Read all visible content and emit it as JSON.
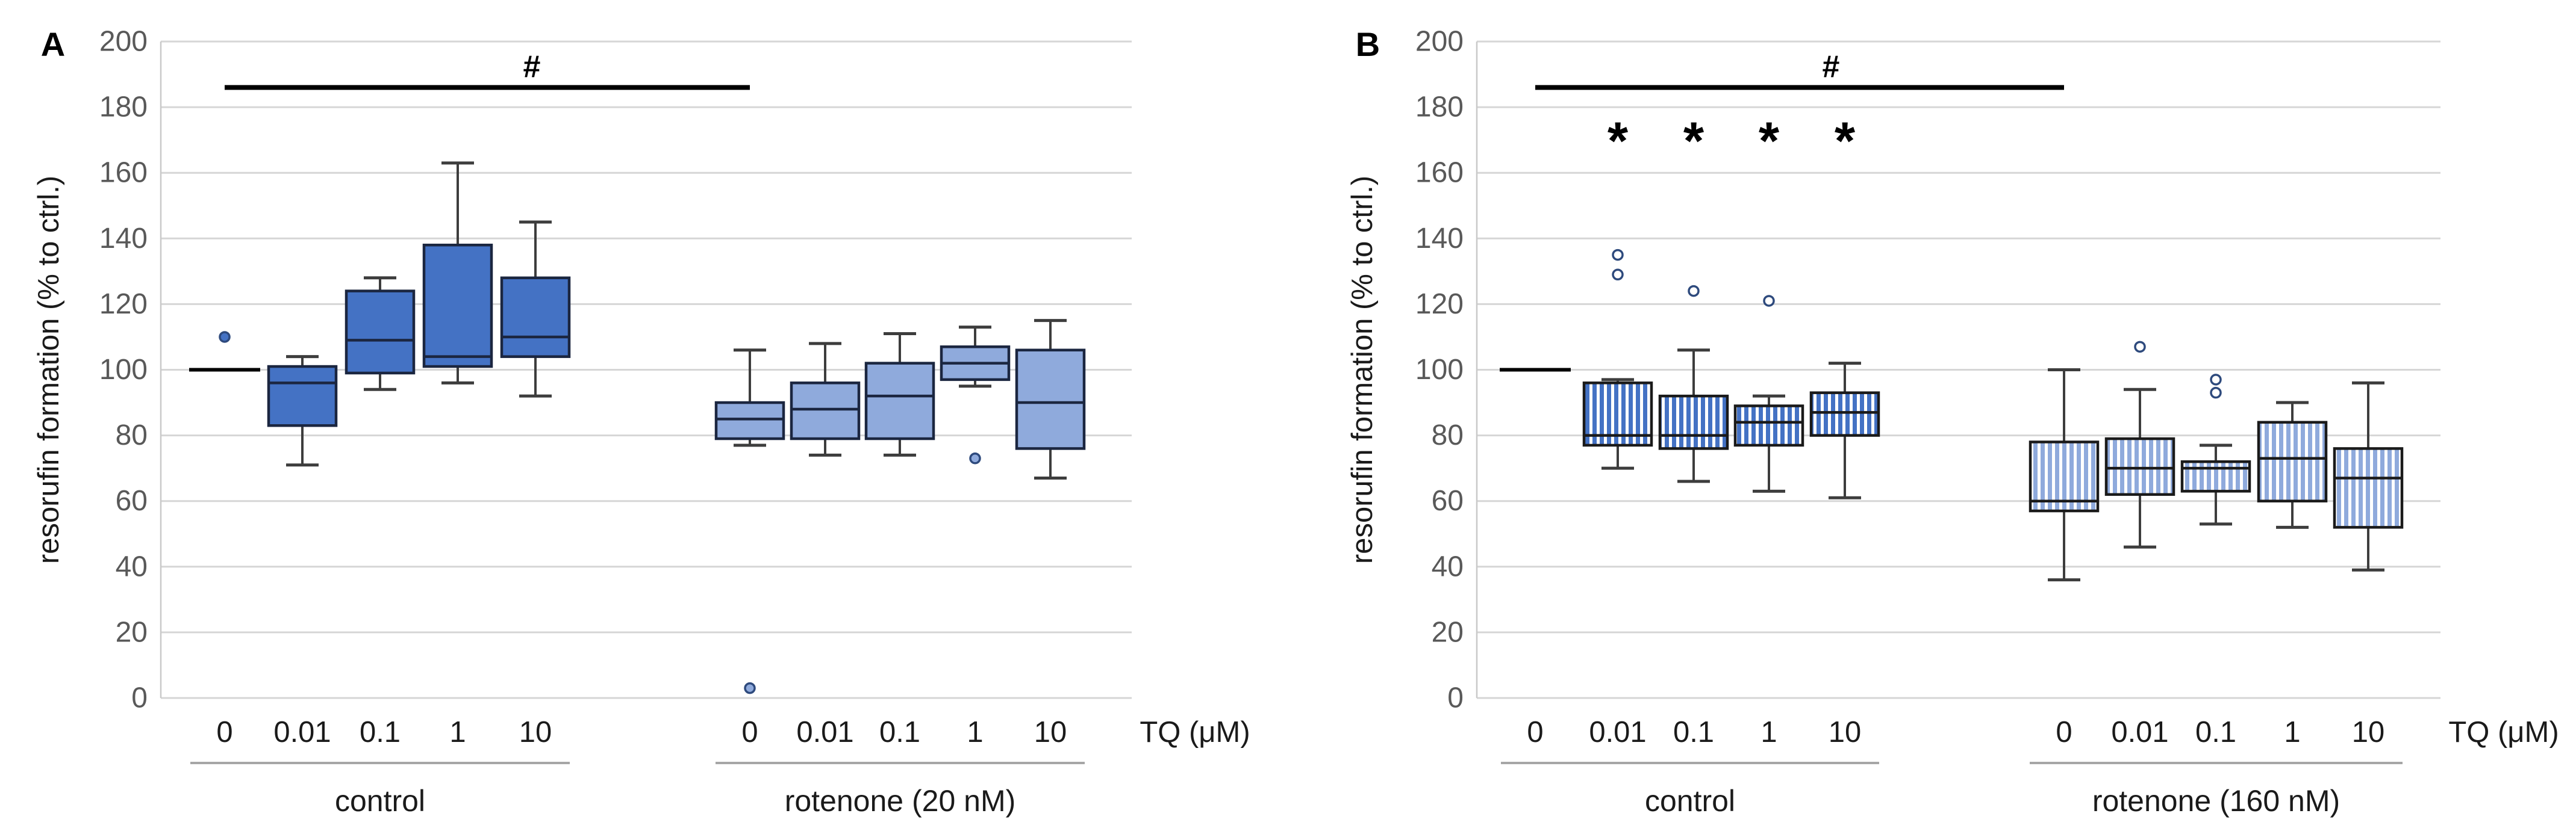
{
  "figure": {
    "description_texts": {
      "y_axis_title": "resorufin formation (% to ctrl.)",
      "x_axis_title": "TQ (μM)"
    },
    "colors": {
      "box_fill_dark": "#4472C4",
      "box_fill_light": "#8FAADC",
      "box_border": "#1b2640",
      "whisker": "#3d3d3d",
      "gridline": "#d6d6d6",
      "tick_text": "#595959",
      "label_text": "#1a1a1a",
      "annotation": "#000000",
      "group_underline": "#a6a6a6"
    }
  },
  "chart_data": [
    {
      "panel_label": "A",
      "type": "box",
      "ylabel": "resorufin formation (% to ctrl.)",
      "xlabel": "TQ (μM)",
      "ylim": [
        0,
        200
      ],
      "ytick_step": 20,
      "yticks": [
        0,
        20,
        40,
        60,
        80,
        100,
        120,
        140,
        160,
        180,
        200
      ],
      "grid": true,
      "legend": "none",
      "groups": [
        {
          "name": "control",
          "fill_style": "solid",
          "tone": "dark",
          "categories": [
            "0",
            "0.01",
            "0.1",
            "1",
            "10"
          ],
          "boxes": [
            {
              "category": "0",
              "flat_median": 100,
              "outliers": [
                110
              ]
            },
            {
              "category": "0.01",
              "whisker_low": 71,
              "q1": 83,
              "median": 96,
              "q3": 101,
              "whisker_high": 104,
              "outliers": []
            },
            {
              "category": "0.1",
              "whisker_low": 94,
              "q1": 99,
              "median": 109,
              "q3": 124,
              "whisker_high": 128,
              "outliers": []
            },
            {
              "category": "1",
              "whisker_low": 96,
              "q1": 101,
              "median": 104,
              "q3": 138,
              "whisker_high": 163,
              "outliers": []
            },
            {
              "category": "10",
              "whisker_low": 92,
              "q1": 104,
              "median": 110,
              "q3": 128,
              "whisker_high": 145,
              "outliers": []
            }
          ]
        },
        {
          "name": "rotenone (20 nM)",
          "fill_style": "solid",
          "tone": "light",
          "categories": [
            "0",
            "0.01",
            "0.1",
            "1",
            "10"
          ],
          "boxes": [
            {
              "category": "0",
              "whisker_low": 77,
              "q1": 79,
              "median": 85,
              "q3": 90,
              "whisker_high": 106,
              "outliers": [
                3
              ]
            },
            {
              "category": "0.01",
              "whisker_low": 74,
              "q1": 79,
              "median": 88,
              "q3": 96,
              "whisker_high": 108,
              "outliers": []
            },
            {
              "category": "0.1",
              "whisker_low": 74,
              "q1": 79,
              "median": 92,
              "q3": 102,
              "whisker_high": 111,
              "outliers": []
            },
            {
              "category": "1",
              "whisker_low": 95,
              "q1": 97,
              "median": 102,
              "q3": 107,
              "whisker_high": 113,
              "outliers": [
                73
              ]
            },
            {
              "category": "10",
              "whisker_low": 67,
              "q1": 76,
              "median": 90,
              "q3": 106,
              "whisker_high": 115,
              "outliers": []
            }
          ]
        }
      ],
      "significance_bar": {
        "label": "#",
        "y": 186,
        "from_group": 0,
        "from_cat": 0,
        "to_group": 1,
        "to_cat": 0
      },
      "star_annotations": null
    },
    {
      "panel_label": "B",
      "type": "box",
      "ylabel": "resorufin formation (% to ctrl.)",
      "xlabel": "TQ (μM)",
      "ylim": [
        0,
        200
      ],
      "ytick_step": 20,
      "yticks": [
        0,
        20,
        40,
        60,
        80,
        100,
        120,
        140,
        160,
        180,
        200
      ],
      "grid": true,
      "legend": "none",
      "groups": [
        {
          "name": "control",
          "fill_style": "striped",
          "tone": "dark",
          "categories": [
            "0",
            "0.01",
            "0.1",
            "1",
            "10"
          ],
          "boxes": [
            {
              "category": "0",
              "flat_median": 100,
              "outliers": []
            },
            {
              "category": "0.01",
              "whisker_low": 70,
              "q1": 77,
              "median": 80,
              "q3": 96,
              "whisker_high": 97,
              "outliers": [
                129,
                135
              ]
            },
            {
              "category": "0.1",
              "whisker_low": 66,
              "q1": 76,
              "median": 80,
              "q3": 92,
              "whisker_high": 106,
              "outliers": [
                124
              ]
            },
            {
              "category": "1",
              "whisker_low": 63,
              "q1": 77,
              "median": 84,
              "q3": 89,
              "whisker_high": 92,
              "outliers": [
                121
              ]
            },
            {
              "category": "10",
              "whisker_low": 61,
              "q1": 80,
              "median": 87,
              "q3": 93,
              "whisker_high": 102,
              "outliers": []
            }
          ]
        },
        {
          "name": "rotenone (160 nM)",
          "fill_style": "striped",
          "tone": "light",
          "categories": [
            "0",
            "0.01",
            "0.1",
            "1",
            "10"
          ],
          "boxes": [
            {
              "category": "0",
              "whisker_low": 36,
              "q1": 57,
              "median": 60,
              "q3": 78,
              "whisker_high": 100,
              "outliers": []
            },
            {
              "category": "0.01",
              "whisker_low": 46,
              "q1": 62,
              "median": 70,
              "q3": 79,
              "whisker_high": 94,
              "outliers": [
                107
              ]
            },
            {
              "category": "0.1",
              "whisker_low": 53,
              "q1": 63,
              "median": 70,
              "q3": 72,
              "whisker_high": 77,
              "outliers": [
                93,
                97
              ]
            },
            {
              "category": "1",
              "whisker_low": 52,
              "q1": 60,
              "median": 73,
              "q3": 84,
              "whisker_high": 90,
              "outliers": []
            },
            {
              "category": "10",
              "whisker_low": 39,
              "q1": 52,
              "median": 67,
              "q3": 76,
              "whisker_high": 96,
              "outliers": []
            }
          ]
        }
      ],
      "significance_bar": {
        "label": "#",
        "y": 186,
        "from_group": 0,
        "from_cat": 0,
        "to_group": 1,
        "to_cat": 0
      },
      "star_annotations": {
        "symbol": "*",
        "y": 172,
        "group": 0,
        "cat_indices": [
          1,
          2,
          3,
          4
        ]
      }
    }
  ]
}
